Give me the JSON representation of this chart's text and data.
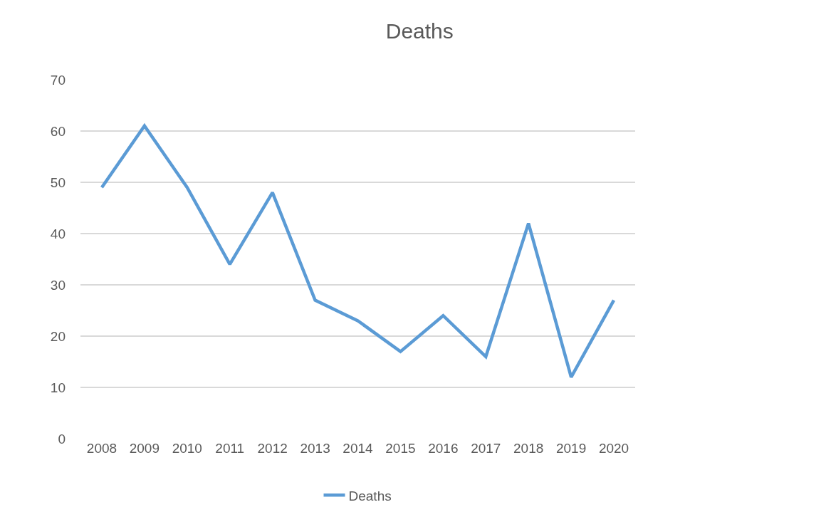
{
  "chart_data": {
    "type": "line",
    "title": "Deaths",
    "categories": [
      "2008",
      "2009",
      "2010",
      "2011",
      "2012",
      "2013",
      "2014",
      "2015",
      "2016",
      "2017",
      "2018",
      "2019",
      "2020"
    ],
    "series": [
      {
        "name": "Deaths",
        "color": "#5b9bd5",
        "values": [
          49,
          61,
          49,
          34,
          48,
          27,
          23,
          17,
          24,
          16,
          42,
          12,
          27
        ]
      }
    ],
    "ylim": [
      0,
      70
    ],
    "yticks": [
      0,
      10,
      20,
      30,
      40,
      50,
      60,
      70
    ],
    "grid": "y",
    "legend": "bottom",
    "marker": "none",
    "line_style": "solid"
  }
}
